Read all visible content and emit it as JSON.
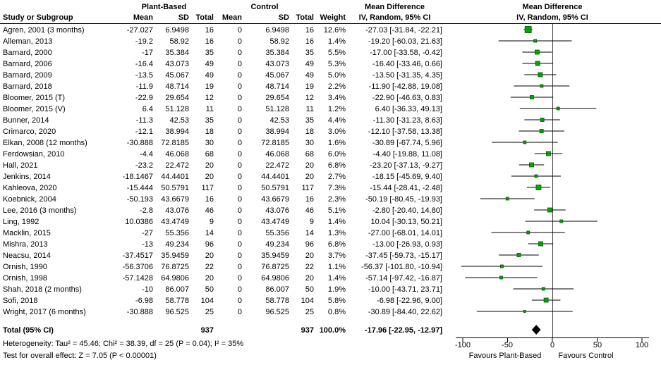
{
  "chart_data": {
    "type": "forest",
    "title": "Mean Difference",
    "effect_header_line1": "Mean Difference",
    "effect_header_line2": "IV, Random, 95% CI",
    "group1": "Plant-Based",
    "group2": "Control",
    "columns": {
      "study": "Study or Subgroup",
      "mean": "Mean",
      "sd": "SD",
      "total": "Total",
      "weight": "Weight"
    },
    "xlim": [
      -100,
      100
    ],
    "x_ticks": [
      "-100",
      "-50",
      "0",
      "50",
      "100"
    ],
    "x_tick_values": [
      -100,
      -50,
      0,
      50,
      100
    ],
    "favours_left": "Favours Plant-Based",
    "favours_right": "Favours Control",
    "legend_position": "none",
    "grid": false,
    "studies": [
      {
        "name": "Agren, 2001 (3 months)",
        "m1": "-27.027",
        "sd1": "6.9498",
        "n1": "16",
        "m2": "0",
        "sd2": "6.9498",
        "n2": "16",
        "weight": "12.6%",
        "ci": "-27.03 [-31.84, -22.21]",
        "md": -27.03,
        "lo": -31.84,
        "hi": -22.21,
        "wv": 12.6
      },
      {
        "name": "Alleman, 2013",
        "m1": "-19.2",
        "sd1": "58.92",
        "n1": "16",
        "m2": "0",
        "sd2": "58.92",
        "n2": "16",
        "weight": "1.4%",
        "ci": "-19.20 [-60.03, 21.63]",
        "md": -19.2,
        "lo": -60.03,
        "hi": 21.63,
        "wv": 1.4
      },
      {
        "name": "Barnard, 2000",
        "m1": "-17",
        "sd1": "35.384",
        "n1": "35",
        "m2": "0",
        "sd2": "35.384",
        "n2": "35",
        "weight": "5.5%",
        "ci": "-17.00 [-33.58, -0.42]",
        "md": -17.0,
        "lo": -33.58,
        "hi": -0.42,
        "wv": 5.5
      },
      {
        "name": "Barnard, 2006",
        "m1": "-16.4",
        "sd1": "43.073",
        "n1": "49",
        "m2": "0",
        "sd2": "43.073",
        "n2": "49",
        "weight": "5.3%",
        "ci": "-16.40 [-33.46, 0.66]",
        "md": -16.4,
        "lo": -33.46,
        "hi": 0.66,
        "wv": 5.3
      },
      {
        "name": "Barnard, 2009",
        "m1": "-13.5",
        "sd1": "45.067",
        "n1": "49",
        "m2": "0",
        "sd2": "45.067",
        "n2": "49",
        "weight": "5.0%",
        "ci": "-13.50 [-31.35, 4.35]",
        "md": -13.5,
        "lo": -31.35,
        "hi": 4.35,
        "wv": 5.0
      },
      {
        "name": "Barnard, 2018",
        "m1": "-11.9",
        "sd1": "48.714",
        "n1": "19",
        "m2": "0",
        "sd2": "48.714",
        "n2": "19",
        "weight": "2.2%",
        "ci": "-11.90 [-42.88, 19.08]",
        "md": -11.9,
        "lo": -42.88,
        "hi": 19.08,
        "wv": 2.2
      },
      {
        "name": "Bloomer, 2015 (T)",
        "m1": "-22.9",
        "sd1": "29.654",
        "n1": "12",
        "m2": "0",
        "sd2": "29.654",
        "n2": "12",
        "weight": "3.4%",
        "ci": "-22.90 [-46.63, 0.83]",
        "md": -22.9,
        "lo": -46.63,
        "hi": 0.83,
        "wv": 3.4
      },
      {
        "name": "Bloomer, 2015 (V)",
        "m1": "6.4",
        "sd1": "51.128",
        "n1": "11",
        "m2": "0",
        "sd2": "51.128",
        "n2": "11",
        "weight": "1.2%",
        "ci": "6.40 [-36.33, 49.13]",
        "md": 6.4,
        "lo": -36.33,
        "hi": 49.13,
        "wv": 1.2
      },
      {
        "name": "Bunner, 2014",
        "m1": "-11.3",
        "sd1": "42.53",
        "n1": "35",
        "m2": "0",
        "sd2": "42.53",
        "n2": "35",
        "weight": "4.4%",
        "ci": "-11.30 [-31.23, 8.63]",
        "md": -11.3,
        "lo": -31.23,
        "hi": 8.63,
        "wv": 4.4
      },
      {
        "name": "Crimarco, 2020",
        "m1": "-12.1",
        "sd1": "38.994",
        "n1": "18",
        "m2": "0",
        "sd2": "38.994",
        "n2": "18",
        "weight": "3.0%",
        "ci": "-12.10 [-37.58, 13.38]",
        "md": -12.1,
        "lo": -37.58,
        "hi": 13.38,
        "wv": 3.0
      },
      {
        "name": "Elkan, 2008 (12 months)",
        "m1": "-30.888",
        "sd1": "72.8185",
        "n1": "30",
        "m2": "0",
        "sd2": "72.8185",
        "n2": "30",
        "weight": "1.6%",
        "ci": "-30.89 [-67.74, 5.96]",
        "md": -30.89,
        "lo": -67.74,
        "hi": 5.96,
        "wv": 1.6
      },
      {
        "name": "Ferdowsian, 2010",
        "m1": "-4.4",
        "sd1": "46.068",
        "n1": "68",
        "m2": "0",
        "sd2": "46.068",
        "n2": "68",
        "weight": "6.0%",
        "ci": "-4.40 [-19.88, 11.08]",
        "md": -4.4,
        "lo": -19.88,
        "hi": 11.08,
        "wv": 6.0
      },
      {
        "name": "Hall, 2021",
        "m1": "-23.2",
        "sd1": "22.472",
        "n1": "20",
        "m2": "0",
        "sd2": "22.472",
        "n2": "20",
        "weight": "6.8%",
        "ci": "-23.20 [-37.13, -9.27]",
        "md": -23.2,
        "lo": -37.13,
        "hi": -9.27,
        "wv": 6.8
      },
      {
        "name": "Jenkins, 2014",
        "m1": "-18.1467",
        "sd1": "44.4401",
        "n1": "20",
        "m2": "0",
        "sd2": "44.4401",
        "n2": "20",
        "weight": "2.7%",
        "ci": "-18.15 [-45.69, 9.40]",
        "md": -18.15,
        "lo": -45.69,
        "hi": 9.4,
        "wv": 2.7
      },
      {
        "name": "Kahleova, 2020",
        "m1": "-15.444",
        "sd1": "50.5791",
        "n1": "117",
        "m2": "0",
        "sd2": "50.5791",
        "n2": "117",
        "weight": "7.3%",
        "ci": "-15.44 [-28.41, -2.48]",
        "md": -15.44,
        "lo": -28.41,
        "hi": -2.48,
        "wv": 7.3
      },
      {
        "name": "Koebnick, 2004",
        "m1": "-50.193",
        "sd1": "43.6679",
        "n1": "16",
        "m2": "0",
        "sd2": "43.6679",
        "n2": "16",
        "weight": "2.3%",
        "ci": "-50.19 [-80.45, -19.93]",
        "md": -50.19,
        "lo": -80.45,
        "hi": -19.93,
        "wv": 2.3
      },
      {
        "name": "Lee, 2016 (3 months)",
        "m1": "-2.8",
        "sd1": "43.076",
        "n1": "46",
        "m2": "0",
        "sd2": "43.076",
        "n2": "46",
        "weight": "5.1%",
        "ci": "-2.80 [-20.40, 14.80]",
        "md": -2.8,
        "lo": -20.4,
        "hi": 14.8,
        "wv": 5.1
      },
      {
        "name": "Ling, 1992",
        "m1": "10.0386",
        "sd1": "43.4749",
        "n1": "9",
        "m2": "0",
        "sd2": "43.4749",
        "n2": "9",
        "weight": "1.4%",
        "ci": "10.04 [-30.13, 50.21]",
        "md": 10.04,
        "lo": -30.13,
        "hi": 50.21,
        "wv": 1.4
      },
      {
        "name": "Macklin, 2015",
        "m1": "-27",
        "sd1": "55.356",
        "n1": "14",
        "m2": "0",
        "sd2": "55.356",
        "n2": "14",
        "weight": "1.3%",
        "ci": "-27.00 [-68.01, 14.01]",
        "md": -27.0,
        "lo": -68.01,
        "hi": 14.01,
        "wv": 1.3
      },
      {
        "name": "Mishra, 2013",
        "m1": "-13",
        "sd1": "49.234",
        "n1": "96",
        "m2": "0",
        "sd2": "49.234",
        "n2": "96",
        "weight": "6.8%",
        "ci": "-13.00 [-26.93, 0.93]",
        "md": -13.0,
        "lo": -26.93,
        "hi": 0.93,
        "wv": 6.8
      },
      {
        "name": "Neacsu, 2014",
        "m1": "-37.4517",
        "sd1": "35.9459",
        "n1": "20",
        "m2": "0",
        "sd2": "35.9459",
        "n2": "20",
        "weight": "3.7%",
        "ci": "-37.45 [-59.73, -15.17]",
        "md": -37.45,
        "lo": -59.73,
        "hi": -15.17,
        "wv": 3.7
      },
      {
        "name": "Ornish, 1990",
        "m1": "-56.3706",
        "sd1": "76.8725",
        "n1": "22",
        "m2": "0",
        "sd2": "76.8725",
        "n2": "22",
        "weight": "1.1%",
        "ci": "-56.37 [-101.80, -10.94]",
        "md": -56.37,
        "lo": -101.8,
        "hi": -10.94,
        "wv": 1.1
      },
      {
        "name": "Ornish, 1998",
        "m1": "-57.1428",
        "sd1": "64.9806",
        "n1": "20",
        "m2": "0",
        "sd2": "64.9806",
        "n2": "20",
        "weight": "1.4%",
        "ci": "-57.14 [-97.42, -16.87]",
        "md": -57.14,
        "lo": -97.42,
        "hi": -16.87,
        "wv": 1.4
      },
      {
        "name": "Shah, 2018 (2 months)",
        "m1": "-10",
        "sd1": "86.007",
        "n1": "50",
        "m2": "0",
        "sd2": "86.007",
        "n2": "50",
        "weight": "1.9%",
        "ci": "-10.00 [-43.71, 23.71]",
        "md": -10.0,
        "lo": -43.71,
        "hi": 23.71,
        "wv": 1.9
      },
      {
        "name": "Sofi, 2018",
        "m1": "-6.98",
        "sd1": "58.778",
        "n1": "104",
        "m2": "0",
        "sd2": "58.778",
        "n2": "104",
        "weight": "5.8%",
        "ci": "-6.98 [-22.96, 9.00]",
        "md": -6.98,
        "lo": -22.96,
        "hi": 9.0,
        "wv": 5.8
      },
      {
        "name": "Wright, 2017 (6 months)",
        "m1": "-30.888",
        "sd1": "96.525",
        "n1": "25",
        "m2": "0",
        "sd2": "96.525",
        "n2": "25",
        "weight": "0.8%",
        "ci": "-30.89 [-84.40, 22.62]",
        "md": -30.89,
        "lo": -84.4,
        "hi": 22.62,
        "wv": 0.8
      }
    ],
    "total": {
      "label": "Total (95% CI)",
      "n1": "937",
      "n2": "937",
      "weight": "100.0%",
      "ci": "-17.96 [-22.95, -12.97]",
      "md": -17.96,
      "lo": -22.95,
      "hi": -12.97
    },
    "heterogeneity": "Heterogeneity: Tau² = 45.46; Chi² = 38.39, df = 25 (P = 0.04); I² = 35%",
    "overall_effect": "Test for overall effect: Z = 7.05 (P < 0.00001)",
    "colors": {
      "square": "#00a800",
      "square_border": "#005500",
      "diamond": "#000000",
      "ci_line": "#000000",
      "zero_line": "#404040",
      "axis": "#000000"
    }
  }
}
